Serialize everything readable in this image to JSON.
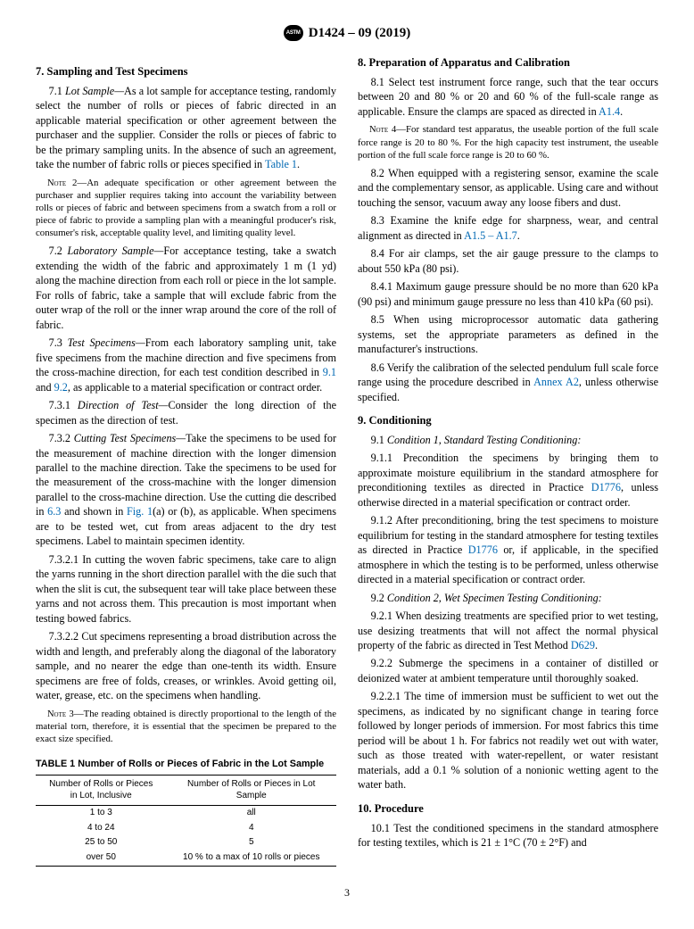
{
  "header": {
    "code": "D1424 – 09 (2019)"
  },
  "page_number": "3",
  "colors": {
    "link": "#0068b3",
    "text": "#000000",
    "bg": "#ffffff"
  },
  "s7": {
    "title": "7.  Sampling and Test Specimens",
    "p1_pre": "7.1 ",
    "p1_em": "Lot Sample—",
    "p1_post": "As a lot sample for acceptance testing, randomly select the number of rolls or pieces of fabric directed in an applicable material specification or other agreement between the purchaser and the supplier. Consider the rolls or pieces of fabric to be the primary sampling units. In the absence of such an agreement, take the number of fabric rolls or pieces specified in ",
    "p1_ref": "Table 1",
    "p1_end": ".",
    "note2_label": "Note",
    "note2_num": " 2—",
    "note2_body": "An adequate specification or other agreement between the purchaser and supplier requires taking into account the variability between rolls or pieces of fabric and between specimens from a swatch from a roll or piece of fabric to provide a sampling plan with a meaningful producer's risk, consumer's risk, acceptable quality level, and limiting quality level.",
    "p2_pre": "7.2 ",
    "p2_em": "Laboratory Sample—",
    "p2_post": "For acceptance testing, take a swatch extending the width of the fabric and approximately 1 m (1 yd) along the machine direction from each roll or piece in the lot sample. For rolls of fabric, take a sample that will exclude fabric from the outer wrap of the roll or the inner wrap around the core of the roll of fabric.",
    "p3_pre": "7.3 ",
    "p3_em": "Test Specimens—",
    "p3_post_a": "From each laboratory sampling unit, take five specimens from the machine direction and five specimens from the cross-machine direction, for each test condition described in ",
    "p3_ref1": "9.1",
    "p3_and": " and ",
    "p3_ref2": "9.2",
    "p3_post_b": ", as applicable to a material specification or contract order.",
    "p31_pre": "7.3.1 ",
    "p31_em": "Direction of Test—",
    "p31_post": "Consider the long direction of the specimen as the direction of test.",
    "p32_pre": "7.3.2 ",
    "p32_em": "Cutting Test Specimens—",
    "p32_post_a": "Take the specimens to be used for the measurement of machine direction with the longer dimension parallel to the machine direction. Take the specimens to be used for the measurement of the cross-machine with the longer dimension parallel to the cross-machine direction. Use the cutting die described in ",
    "p32_ref1": "6.3",
    "p32_mid": " and shown in ",
    "p32_ref2": "Fig. 1",
    "p32_post_b": "(a) or (b), as applicable. When specimens are to be tested wet, cut from areas adjacent to the dry test specimens. Label to maintain specimen identity.",
    "p321": "7.3.2.1 In cutting the woven fabric specimens, take care to align the yarns running in the short direction parallel with the die such that when the slit is cut, the subsequent tear will take place between these yarns and not across them. This precaution is most important when testing bowed fabrics.",
    "p322": "7.3.2.2 Cut specimens representing a broad distribution across the width and length, and preferably along the diagonal of the laboratory sample, and no nearer the edge than one-tenth its width. Ensure specimens are free of folds, creases, or wrinkles. Avoid getting oil, water, grease, etc. on the specimens when handling.",
    "note3_label": "Note",
    "note3_num": " 3—",
    "note3_body": "The reading obtained is directly proportional to the length of the material torn, therefore, it is essential that the specimen be prepared to the exact size specified."
  },
  "table1": {
    "caption": "TABLE 1 Number of Rolls or Pieces of Fabric in the Lot Sample",
    "header_col1_a": "Number of Rolls or Pieces",
    "header_col1_b": "in Lot, Inclusive",
    "header_col2_a": "Number of Rolls or Pieces in Lot",
    "header_col2_b": "Sample",
    "rows": [
      {
        "c1": "1 to 3",
        "c2": "all"
      },
      {
        "c1": "4 to 24",
        "c2": "4"
      },
      {
        "c1": "25 to 50",
        "c2": "5"
      },
      {
        "c1": "over 50",
        "c2": "10 % to a max of 10 rolls or pieces"
      }
    ]
  },
  "s8": {
    "title": "8.  Preparation of Apparatus and Calibration",
    "p1_a": "8.1 Select test instrument force range, such that the tear occurs between 20 and 80 % or 20 and 60 % of the full-scale range as applicable. Ensure the clamps are spaced as directed in ",
    "p1_ref": "A1.4",
    "p1_b": ".",
    "note4_label": "Note",
    "note4_num": " 4—",
    "note4_body": "For standard test apparatus, the useable portion of the full scale force range is 20 to 80 %. For the high capacity test instrument, the useable portion of the full scale force range is 20 to 60 %.",
    "p2": "8.2 When equipped with a registering sensor, examine the scale and the complementary sensor, as applicable. Using care and without touching the sensor, vacuum away any loose fibers and dust.",
    "p3_a": "8.3 Examine the knife edge for sharpness, wear, and central alignment as directed in ",
    "p3_ref": "A1.5 – A1.7",
    "p3_b": ".",
    "p4": "8.4 For air clamps, set the air gauge pressure to the clamps to about 550 kPa (80 psi).",
    "p41": "8.4.1 Maximum gauge pressure should be no more than 620 kPa (90 psi) and minimum gauge pressure no less than 410 kPa (60 psi).",
    "p5": "8.5 When using microprocessor automatic data gathering systems, set the appropriate parameters as defined in the manufacturer's instructions.",
    "p6_a": "8.6 Verify the calibration of the selected pendulum full scale force range using the procedure described in ",
    "p6_ref": "Annex A2",
    "p6_b": ", unless otherwise specified."
  },
  "s9": {
    "title": "9.  Conditioning",
    "p1_pre": "9.1 ",
    "p1_em": "Condition 1, Standard Testing Conditioning:",
    "p11_a": "9.1.1 Precondition the specimens by bringing them to approximate moisture equilibrium in the standard atmosphere for preconditioning textiles as directed in Practice ",
    "p11_ref": "D1776",
    "p11_b": ", unless otherwise directed in a material specification or contract order.",
    "p12_a": "9.1.2 After preconditioning, bring the test specimens to moisture equilibrium for testing in the standard atmosphere for testing textiles as directed in Practice ",
    "p12_ref": "D1776",
    "p12_b": " or, if applicable, in the specified atmosphere in which the testing is to be performed, unless otherwise directed in a material specification or contract order.",
    "p2_pre": "9.2 ",
    "p2_em": "Condition 2, Wet Specimen Testing Conditioning:",
    "p21_a": "9.2.1 When desizing treatments are specified prior to wet testing, use desizing treatments that will not affect the normal physical property of the fabric as directed in Test Method ",
    "p21_ref": "D629",
    "p21_b": ".",
    "p22": "9.2.2 Submerge the specimens in a container of distilled or deionized water at ambient temperature until thoroughly soaked.",
    "p221": "9.2.2.1 The time of immersion must be sufficient to wet out the specimens, as indicated by no significant change in tearing force followed by longer periods of immersion. For most fabrics this time period will be about 1 h. For fabrics not readily wet out with water, such as those treated with water-repellent, or water resistant materials, add a 0.1 % solution of a nonionic wetting agent to the water bath."
  },
  "s10": {
    "title": "10.  Procedure",
    "p1": "10.1 Test the conditioned specimens in the standard atmosphere for testing textiles, which is 21 ± 1°C (70 ± 2°F) and"
  }
}
